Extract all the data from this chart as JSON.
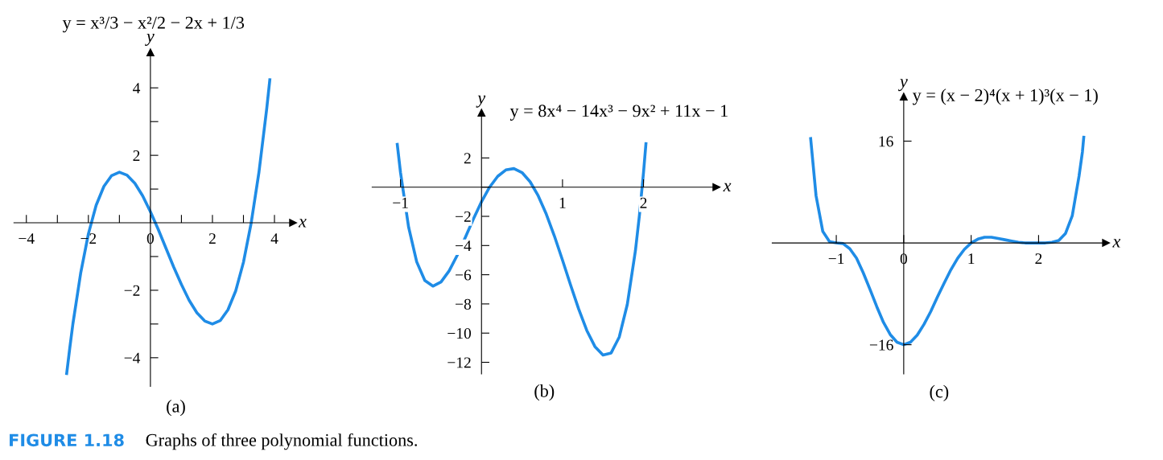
{
  "chart_data": [
    {
      "type": "line",
      "title": "y = x³/3 − x²/2 − 2x + 1/3",
      "xlabel": "x",
      "ylabel": "y",
      "color": "#1f8ce6",
      "annotations": [
        "(a)",
        "FIGURE 1.18",
        "Graphs of three polynomial functions."
      ],
      "x": [
        -2.7,
        -2.6,
        -2.5,
        -2.25,
        -2,
        -1.75,
        -1.5,
        -1.25,
        -1,
        -0.75,
        -0.5,
        -0.25,
        0,
        0.25,
        0.5,
        0.75,
        1,
        1.25,
        1.5,
        1.75,
        2,
        2.25,
        2.5,
        2.75,
        3,
        3.25,
        3.5,
        3.75,
        3.85
      ],
      "values": [
        -4.47,
        -3.71,
        -3.0,
        -1.5,
        -0.33,
        0.52,
        1.08,
        1.4,
        1.5,
        1.41,
        1.17,
        0.8,
        0.33,
        -0.19,
        -0.75,
        -1.31,
        -1.83,
        -2.3,
        -2.67,
        -2.91,
        -3.0,
        -2.9,
        -2.58,
        -2.02,
        -1.17,
        0.0,
        1.5,
        3.38,
        4.24
      ],
      "xlim": [
        -4.4,
        4.6
      ],
      "ylim": [
        -4.85,
        5.05
      ],
      "xticks": [
        {
          "value": -4,
          "label": "−4"
        },
        {
          "value": -3,
          "label": null
        },
        {
          "value": -2,
          "label": "−2"
        },
        {
          "value": -1,
          "label": null
        },
        0,
        {
          "value": 1,
          "label": null
        },
        2,
        {
          "value": 3,
          "label": null
        },
        4
      ],
      "yticks": [
        {
          "value": -4,
          "label": "−4"
        },
        {
          "value": -3,
          "label": null
        },
        {
          "value": -2,
          "label": "−2"
        },
        {
          "value": -1,
          "label": null
        },
        {
          "value": 1,
          "label": null
        },
        2,
        {
          "value": 3,
          "label": null
        },
        4
      ],
      "grid": false,
      "legend": false
    },
    {
      "type": "line",
      "title": "y = 8x⁴ − 14x³ − 9x² + 11x − 1",
      "xlabel": "x",
      "ylabel": "y",
      "color": "#1f8ce6",
      "annotations": [
        "(b)"
      ],
      "x": [
        -1.04,
        -1,
        -0.9,
        -0.8,
        -0.7,
        -0.6,
        -0.5,
        -0.4,
        -0.3,
        -0.2,
        -0.1,
        0,
        0.1,
        0.2,
        0.3,
        0.4,
        0.5,
        0.6,
        0.7,
        0.8,
        0.9,
        1,
        1.1,
        1.2,
        1.3,
        1.4,
        1.5,
        1.6,
        1.7,
        1.8,
        1.9,
        1.95,
        2,
        2.03
      ],
      "values": [
        2.93,
        1.0,
        -2.74,
        -5.12,
        -6.39,
        -6.78,
        -6.5,
        -5.74,
        -4.67,
        -3.44,
        -2.18,
        -1.0,
        0.0,
        0.74,
        1.18,
        1.27,
        1.0,
        0.37,
        -0.59,
        -1.85,
        -3.35,
        -5.0,
        -6.71,
        -8.36,
        -9.82,
        -10.92,
        -11.5,
        -11.36,
        -10.28,
        -8.03,
        -4.36,
        -1.91,
        1.0,
        2.98
      ],
      "xlim": [
        -1.35,
        2.9
      ],
      "ylim": [
        -12.8,
        5.1
      ],
      "xticks": [
        {
          "value": -1,
          "label": "−1"
        },
        1,
        2
      ],
      "yticks": [
        2,
        {
          "value": 0,
          "label": null
        },
        {
          "value": -2,
          "label": "−2"
        },
        {
          "value": -4,
          "label": "−4"
        },
        {
          "value": -6,
          "label": "−6"
        },
        {
          "value": -8,
          "label": "−8"
        },
        {
          "value": -10,
          "label": "−10"
        },
        {
          "value": -12,
          "label": "−12"
        }
      ],
      "grid": false,
      "legend": false
    },
    {
      "type": "line",
      "title": "y = (x − 2)⁴(x + 1)³(x − 1)",
      "xlabel": "x",
      "ylabel": "y",
      "color": "#1f8ce6",
      "annotations": [
        "(c)"
      ],
      "x": [
        -1.38,
        -1.3,
        -1.2,
        -1.1,
        -1,
        -0.9,
        -0.8,
        -0.7,
        -0.6,
        -0.5,
        -0.4,
        -0.3,
        -0.2,
        -0.1,
        0,
        0.1,
        0.2,
        0.3,
        0.4,
        0.5,
        0.6,
        0.7,
        0.8,
        0.9,
        1,
        1.1,
        1.2,
        1.3,
        1.4,
        1.5,
        1.6,
        1.7,
        1.8,
        1.9,
        2,
        2.1,
        2.2,
        2.3,
        2.4,
        2.5,
        2.6,
        2.65,
        2.67
      ],
      "values": [
        16.4,
        7.4,
        1.8,
        0.2,
        0.0,
        -0.1,
        -0.9,
        -2.4,
        -4.7,
        -7.3,
        -10.0,
        -12.5,
        -14.4,
        -15.6,
        -16.0,
        -15.6,
        -14.5,
        -12.8,
        -10.8,
        -8.5,
        -6.3,
        -4.2,
        -2.4,
        -1.0,
        0.0,
        0.6,
        0.9,
        0.9,
        0.7,
        0.5,
        0.3,
        0.1,
        0.0,
        0.0,
        0.0,
        0.0,
        0.1,
        0.4,
        1.5,
        4.3,
        10.5,
        14.3,
        16.6
      ],
      "xlim": [
        -1.95,
        3.0
      ],
      "ylim": [
        -20.6,
        23
      ],
      "xticks": [
        {
          "value": -1,
          "label": "−1"
        },
        0,
        1,
        2
      ],
      "yticks": [
        16,
        {
          "value": -16,
          "label": "−16"
        }
      ],
      "grid": false,
      "legend": false
    }
  ]
}
